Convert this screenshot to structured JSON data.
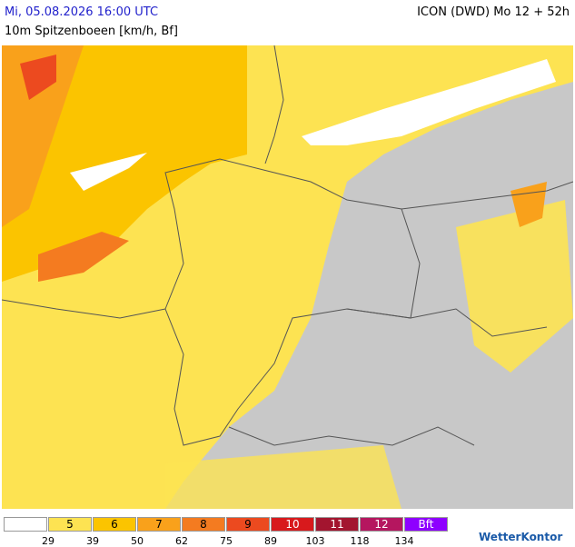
{
  "header": {
    "date": "Mi, 05.08.2026 16:00 UTC",
    "model": "ICON (DWD) Mo 12 + 52h",
    "subtitle": "10m Spitzenboeen [km/h, Bf]"
  },
  "legend": {
    "boxes": [
      {
        "color": "#ffffff"
      },
      {
        "color": "#fde352",
        "label": "5"
      },
      {
        "color": "#fbc400",
        "label": "6"
      },
      {
        "color": "#f9a11b",
        "label": "7"
      },
      {
        "color": "#f47b20",
        "label": "8"
      },
      {
        "color": "#ec4a1f",
        "label": "9"
      },
      {
        "color": "#d8191c",
        "label": "10"
      },
      {
        "color": "#a3152f",
        "label": "11"
      },
      {
        "color": "#b5165f",
        "label": "12"
      },
      {
        "color": "#8e00ff",
        "label": "Bft"
      }
    ],
    "thresholds": [
      "29",
      "39",
      "50",
      "62",
      "75",
      "89",
      "103",
      "118",
      "134"
    ]
  },
  "logo": "WetterKontor"
}
